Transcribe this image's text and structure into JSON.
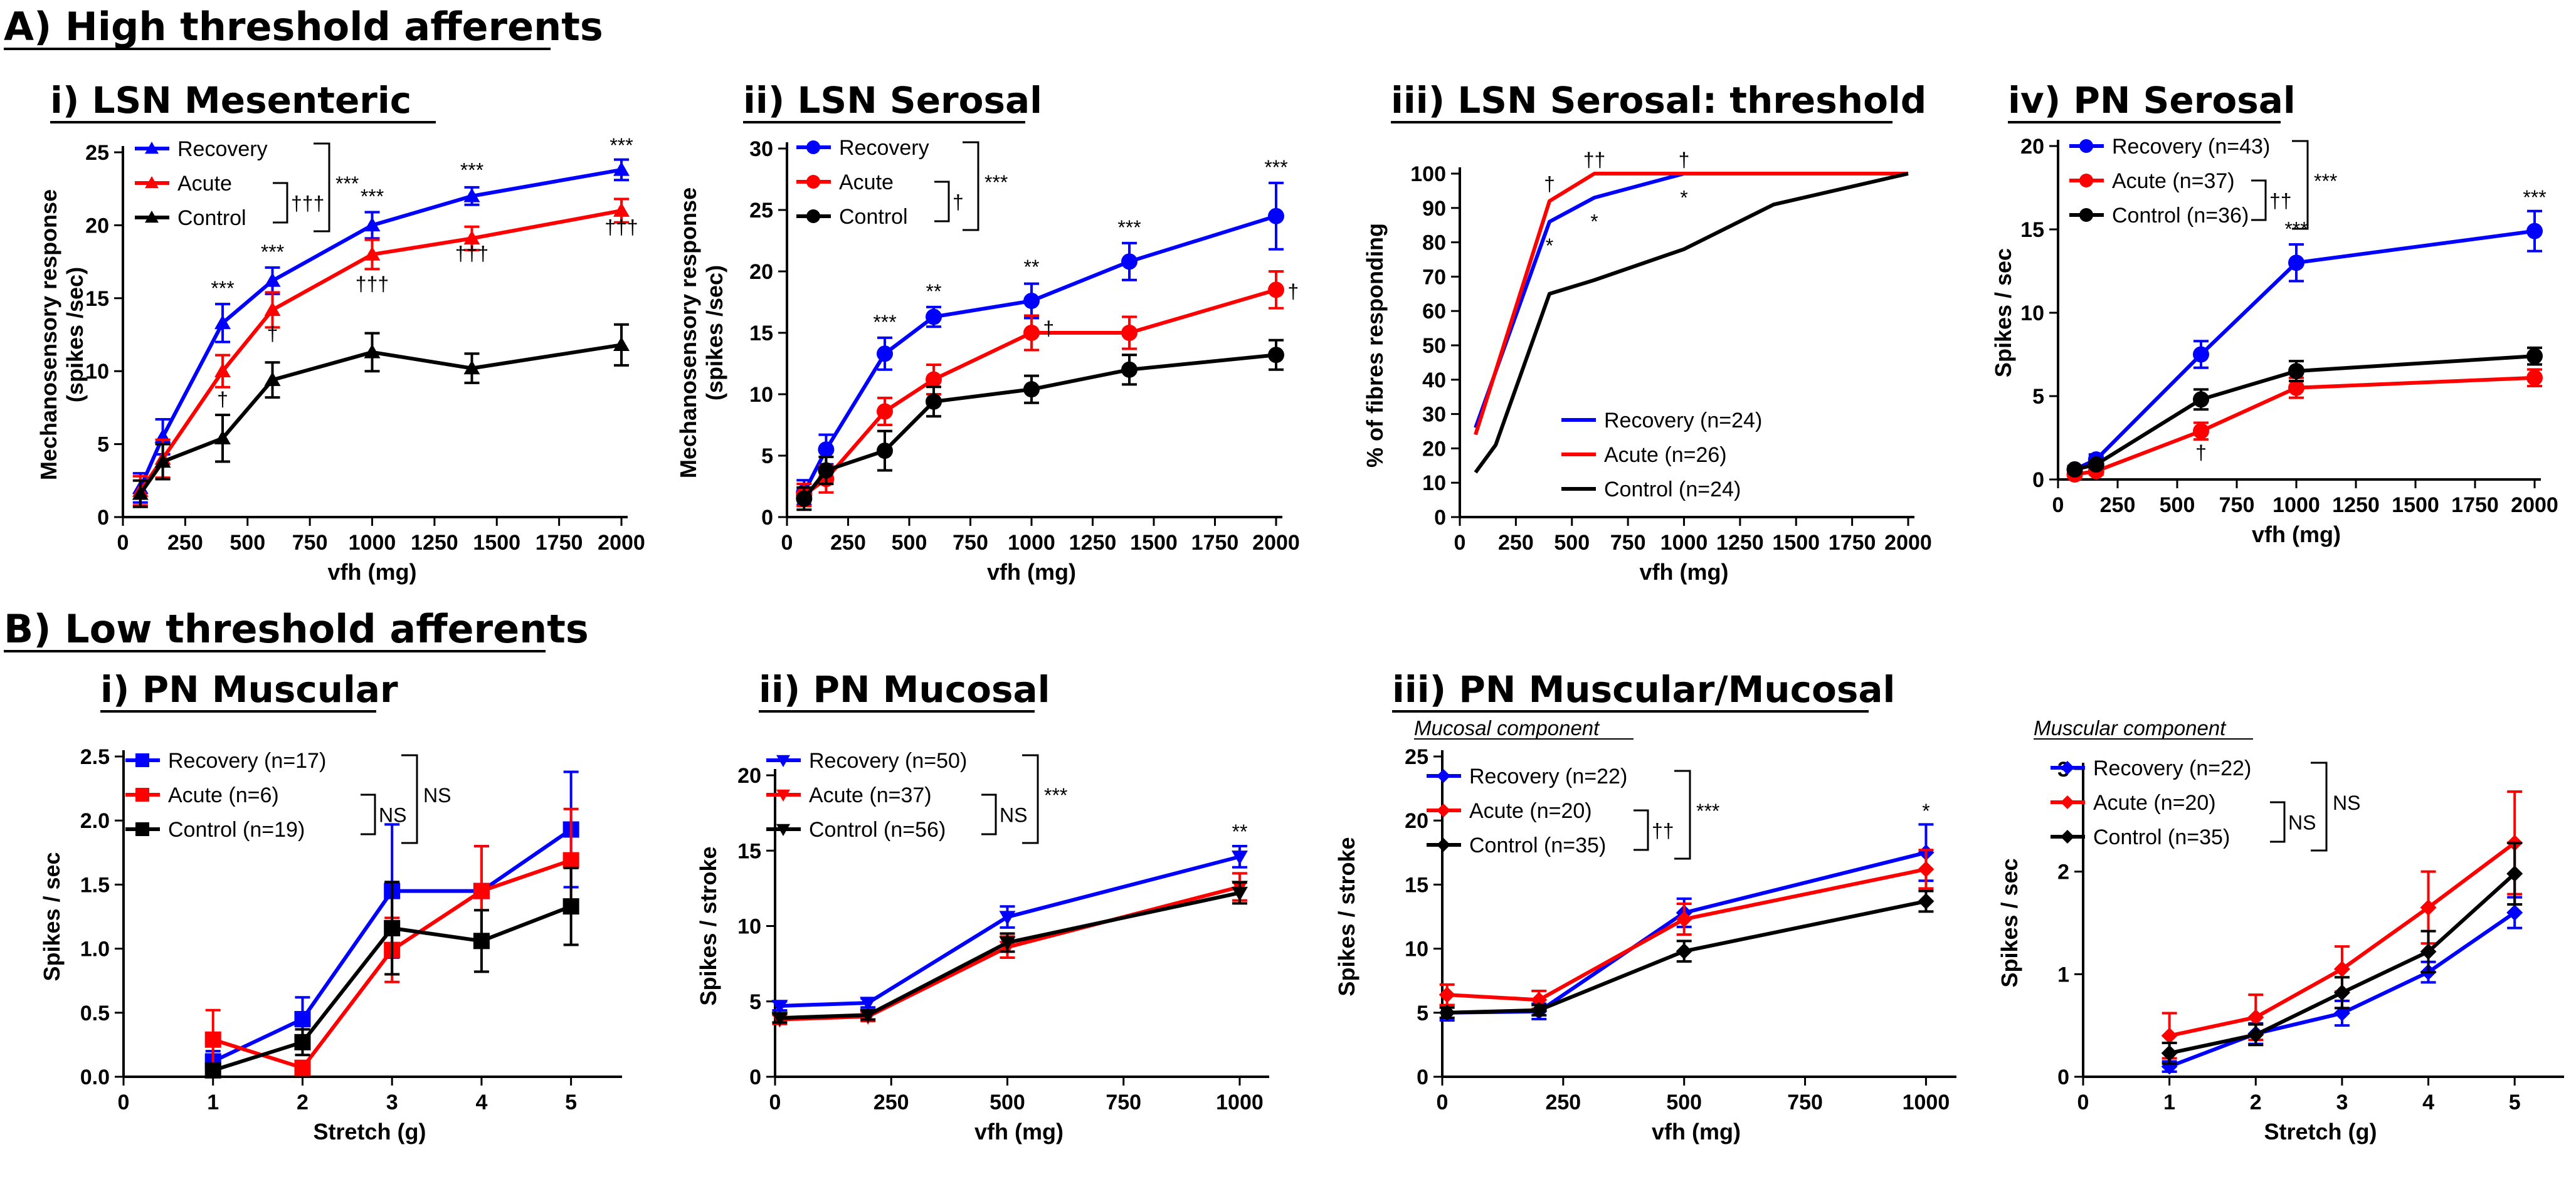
{
  "sections": [
    {
      "label": "A) High threshold afferents"
    },
    {
      "label": "B) Low threshold afferents"
    }
  ],
  "chart_data": [
    {
      "id": "a1",
      "type": "line",
      "title": "i) LSN Mesenteric",
      "xlabel": "vfh (mg)",
      "ylabel": "Mechanosensory response\n(spikes /sec)",
      "xlim": [
        0,
        2000
      ],
      "ylim": [
        0,
        25
      ],
      "xticks": [
        0,
        250,
        500,
        750,
        1000,
        1250,
        1500,
        1750,
        2000
      ],
      "yticks": [
        0,
        5,
        10,
        15,
        20,
        25
      ],
      "x": [
        70,
        160,
        400,
        600,
        1000,
        1400,
        2000
      ],
      "series": [
        {
          "name": "Recovery",
          "color": "#0000ff",
          "marker": "triangle",
          "values": [
            2,
            5.5,
            13.3,
            16.2,
            20,
            22,
            23.8
          ],
          "err": [
            1,
            1.2,
            1.3,
            0.9,
            0.9,
            0.6,
            0.7
          ]
        },
        {
          "name": "Acute",
          "color": "#ff0000",
          "marker": "triangle",
          "values": [
            1.8,
            4,
            10,
            14.2,
            18,
            19.1,
            21
          ],
          "err": [
            1,
            1.3,
            1.1,
            1.2,
            1,
            0.8,
            0.8
          ]
        },
        {
          "name": "Control",
          "color": "#000000",
          "marker": "triangle",
          "values": [
            1.6,
            3.8,
            5.4,
            9.4,
            11.3,
            10.2,
            11.8
          ],
          "err": [
            0.9,
            1.2,
            1.6,
            1.2,
            1.3,
            1,
            1.4
          ]
        }
      ],
      "legend": {
        "labels": [
          "Recovery",
          "Acute",
          "Control"
        ],
        "bracket_inner": "†††",
        "bracket_outer": "***"
      },
      "annotations": [
        {
          "text": "***",
          "x": 400,
          "y": 15.2
        },
        {
          "text": "†",
          "x": 400,
          "y": 7.6
        },
        {
          "text": "***",
          "x": 600,
          "y": 17.7
        },
        {
          "text": "†",
          "x": 600,
          "y": 12.1
        },
        {
          "text": "***",
          "x": 1000,
          "y": 21.5
        },
        {
          "text": "†††",
          "x": 1000,
          "y": 15.5
        },
        {
          "text": "***",
          "x": 1400,
          "y": 23.3
        },
        {
          "text": "†††",
          "x": 1400,
          "y": 17.6
        },
        {
          "text": "***",
          "x": 2000,
          "y": 25
        },
        {
          "text": "†††",
          "x": 2000,
          "y": 19.4
        }
      ]
    },
    {
      "id": "a2",
      "type": "line",
      "title": "ii) LSN Serosal",
      "xlabel": "vfh (mg)",
      "ylabel": "Mechanosensory response\n(spikes /sec)",
      "xlim": [
        0,
        2000
      ],
      "ylim": [
        0,
        30
      ],
      "xticks": [
        0,
        250,
        500,
        750,
        1000,
        1250,
        1500,
        1750,
        2000
      ],
      "yticks": [
        0,
        5,
        10,
        15,
        20,
        25,
        30
      ],
      "x": [
        70,
        160,
        400,
        600,
        1000,
        1400,
        2000
      ],
      "series": [
        {
          "name": "Recovery",
          "color": "#0000ff",
          "marker": "circle",
          "values": [
            2,
            5.5,
            13.3,
            16.3,
            17.6,
            20.8,
            24.5
          ],
          "err": [
            1,
            1.2,
            1.3,
            0.8,
            1.4,
            1.5,
            2.7
          ]
        },
        {
          "name": "Acute",
          "color": "#ff0000",
          "marker": "circle",
          "values": [
            1.8,
            3.1,
            8.6,
            11.2,
            15,
            15,
            18.5
          ],
          "err": [
            0.9,
            1.1,
            1.1,
            1.2,
            1.4,
            1.3,
            1.5
          ]
        },
        {
          "name": "Control",
          "color": "#000000",
          "marker": "circle",
          "values": [
            1.5,
            3.8,
            5.4,
            9.4,
            10.4,
            12,
            13.2
          ],
          "err": [
            0.9,
            1.1,
            1.6,
            1.2,
            1.1,
            1.2,
            1.2
          ]
        }
      ],
      "legend": {
        "labels": [
          "Recovery",
          "Acute",
          "Control"
        ],
        "bracket_inner": "†",
        "bracket_outer": "***"
      },
      "annotations": [
        {
          "text": "***",
          "x": 400,
          "y": 15.3
        },
        {
          "text": "**",
          "x": 600,
          "y": 17.8
        },
        {
          "text": "**",
          "x": 1000,
          "y": 19.8
        },
        {
          "text": "†",
          "x": 1070,
          "y": 14.8
        },
        {
          "text": "***",
          "x": 1400,
          "y": 23
        },
        {
          "text": "***",
          "x": 2000,
          "y": 27.9
        },
        {
          "text": "†",
          "x": 2070,
          "y": 17.8
        }
      ]
    },
    {
      "id": "a3",
      "type": "line",
      "title": "iii) LSN Serosal: threshold",
      "xlabel": "vfh (mg)",
      "ylabel": "% of fibres responding",
      "xlim": [
        0,
        2000
      ],
      "ylim": [
        0,
        100
      ],
      "xticks": [
        0,
        250,
        500,
        750,
        1000,
        1250,
        1500,
        1750,
        2000
      ],
      "yticks": [
        0,
        10,
        20,
        30,
        40,
        50,
        60,
        70,
        80,
        90,
        100
      ],
      "series": [
        {
          "name": "Recovery (n=24)",
          "color": "#0000ff",
          "x": [
            70,
            400,
            600,
            1000,
            1400,
            2000
          ],
          "values": [
            26,
            86,
            93,
            100,
            100,
            100
          ]
        },
        {
          "name": "Acute (n=26)",
          "color": "#ff0000",
          "x": [
            70,
            400,
            600,
            1000,
            1400,
            2000
          ],
          "values": [
            24,
            92,
            100,
            100,
            100,
            100
          ]
        },
        {
          "name": "Control (n=24)",
          "color": "#000000",
          "x": [
            70,
            160,
            400,
            600,
            1000,
            1400,
            2000
          ],
          "values": [
            13,
            21,
            65,
            69,
            78,
            91,
            100
          ]
        }
      ],
      "legend": {
        "labels": [
          "Recovery (n=24)",
          "Acute (n=26)",
          "Control (n=24)"
        ]
      },
      "annotations": [
        {
          "text": "†",
          "x": 400,
          "y": 95
        },
        {
          "text": "*",
          "x": 400,
          "y": 77
        },
        {
          "text": "††",
          "x": 600,
          "y": 102
        },
        {
          "text": "*",
          "x": 600,
          "y": 84
        },
        {
          "text": "†",
          "x": 1000,
          "y": 102
        },
        {
          "text": "*",
          "x": 1000,
          "y": 91
        }
      ]
    },
    {
      "id": "a4",
      "type": "line",
      "title": "iv) PN Serosal",
      "xlabel": "vfh (mg)",
      "ylabel": "Spikes / sec",
      "xlim": [
        0,
        2000
      ],
      "ylim": [
        0,
        20
      ],
      "xticks": [
        0,
        250,
        500,
        750,
        1000,
        1250,
        1500,
        1750,
        2000
      ],
      "yticks": [
        0,
        5,
        10,
        15,
        20
      ],
      "x": [
        70,
        160,
        600,
        1000,
        2000
      ],
      "series": [
        {
          "name": "Recovery (n=43)",
          "color": "#0000ff",
          "marker": "circle",
          "values": [
            0.6,
            1.2,
            7.5,
            13,
            14.9
          ],
          "err": [
            0.2,
            0.3,
            0.8,
            1.1,
            1.2
          ]
        },
        {
          "name": "Acute (n=37)",
          "color": "#ff0000",
          "marker": "circle",
          "values": [
            0.3,
            0.5,
            2.9,
            5.5,
            6.1
          ],
          "err": [
            0.2,
            0.2,
            0.5,
            0.6,
            0.5
          ]
        },
        {
          "name": "Control (n=36)",
          "color": "#000000",
          "marker": "circle",
          "values": [
            0.6,
            0.9,
            4.8,
            6.5,
            7.4
          ],
          "err": [
            0.2,
            0.2,
            0.6,
            0.6,
            0.5
          ]
        }
      ],
      "legend": {
        "labels": [
          "Recovery (n=43)",
          "Acute (n=37)",
          "Control (n=36)"
        ],
        "bracket_inner": "††",
        "bracket_outer": "***"
      },
      "annotations": [
        {
          "text": "†",
          "x": 600,
          "y": 1.2
        },
        {
          "text": "***",
          "x": 1000,
          "y": 14.6
        },
        {
          "text": "***",
          "x": 2000,
          "y": 16.5
        }
      ]
    },
    {
      "id": "b1",
      "type": "line",
      "title": "i) PN Muscular",
      "xlabel": "Stretch (g)",
      "ylabel": "Spikes / sec",
      "xlim": [
        0,
        5.5
      ],
      "ylim": [
        0,
        2.5
      ],
      "xticks": [
        0,
        1,
        2,
        3,
        4,
        5
      ],
      "yticks": [
        0.0,
        0.5,
        1.0,
        1.5,
        2.0,
        2.5
      ],
      "x": [
        1,
        2,
        3,
        4,
        5
      ],
      "series": [
        {
          "name": "Recovery (n=17)",
          "color": "#0000ff",
          "marker": "square",
          "values": [
            0.12,
            0.45,
            1.45,
            1.45,
            1.93
          ],
          "err": [
            0.08,
            0.17,
            0.52,
            0.35,
            0.45
          ]
        },
        {
          "name": "Acute (n=6)",
          "color": "#ff0000",
          "marker": "square",
          "values": [
            0.29,
            0.07,
            0.99,
            1.45,
            1.69
          ],
          "err": [
            0.23,
            0.05,
            0.25,
            0.35,
            0.4
          ]
        },
        {
          "name": "Control (n=19)",
          "color": "#000000",
          "marker": "square",
          "values": [
            0.05,
            0.27,
            1.16,
            1.06,
            1.33
          ],
          "err": [
            0.05,
            0.1,
            0.36,
            0.24,
            0.3
          ]
        }
      ],
      "legend": {
        "labels": [
          "Recovery (n=17)",
          "Acute (n=6)",
          "Control (n=19)"
        ],
        "bracket_inner": "NS",
        "bracket_outer": "NS"
      },
      "annotations": []
    },
    {
      "id": "b2",
      "type": "line",
      "title": "ii) PN Mucosal",
      "xlabel": "vfh (mg)",
      "ylabel": "Spikes / stroke",
      "xlim": [
        0,
        1050
      ],
      "ylim": [
        0,
        20
      ],
      "xticks": [
        0,
        250,
        500,
        750,
        1000
      ],
      "yticks": [
        0,
        5,
        10,
        15,
        20
      ],
      "x": [
        10,
        200,
        500,
        1000
      ],
      "series": [
        {
          "name": "Recovery (n=50)",
          "color": "#0000ff",
          "marker": "triangle-down",
          "values": [
            4.7,
            4.9,
            10.6,
            14.6
          ],
          "err": [
            0.3,
            0.3,
            0.7,
            0.7
          ]
        },
        {
          "name": "Acute (n=37)",
          "color": "#ff0000",
          "marker": "triangle-down",
          "values": [
            3.8,
            4,
            8.6,
            12.6
          ],
          "err": [
            0.3,
            0.3,
            0.7,
            0.9
          ]
        },
        {
          "name": "Control (n=56)",
          "color": "#000000",
          "marker": "triangle-down",
          "values": [
            3.9,
            4.1,
            8.9,
            12.2
          ],
          "err": [
            0.3,
            0.3,
            0.6,
            0.7
          ]
        }
      ],
      "legend": {
        "labels": [
          "Recovery (n=50)",
          "Acute (n=37)",
          "Control (n=56)"
        ],
        "bracket_inner": "NS",
        "bracket_outer": "***"
      },
      "annotations": [
        {
          "text": "**",
          "x": 1000,
          "y": 15.8
        }
      ]
    },
    {
      "id": "b3",
      "type": "line",
      "title": "iii) PN Muscular/Mucosal",
      "subtitle": "Mucosal component",
      "xlabel": "vfh (mg)",
      "ylabel": "Spikes / stroke",
      "xlim": [
        0,
        1050
      ],
      "ylim": [
        0,
        25
      ],
      "xticks": [
        0,
        250,
        500,
        750,
        1000
      ],
      "yticks": [
        0,
        5,
        10,
        15,
        20,
        25
      ],
      "x": [
        10,
        200,
        500,
        1000
      ],
      "series": [
        {
          "name": "Recovery (n=22)",
          "color": "#0000ff",
          "marker": "diamond",
          "values": [
            5,
            5.1,
            12.8,
            17.5
          ],
          "err": [
            0.6,
            0.6,
            1.1,
            2.2
          ]
        },
        {
          "name": "Acute (n=20)",
          "color": "#ff0000",
          "marker": "diamond",
          "values": [
            6.4,
            6,
            12.3,
            16.2
          ],
          "err": [
            0.8,
            0.7,
            1.2,
            1.5
          ]
        },
        {
          "name": "Control (n=35)",
          "color": "#000000",
          "marker": "diamond",
          "values": [
            5,
            5.2,
            9.8,
            13.7
          ],
          "err": [
            0.4,
            0.4,
            0.8,
            0.8
          ]
        }
      ],
      "legend": {
        "labels": [
          "Recovery (n=22)",
          "Acute (n=20)",
          "Control (n=35)"
        ],
        "bracket_inner": "††",
        "bracket_outer": "***"
      },
      "annotations": [
        {
          "text": "*",
          "x": 1000,
          "y": 20.2
        }
      ]
    },
    {
      "id": "b4",
      "type": "line",
      "title": "",
      "subtitle": "Muscular component",
      "xlabel": "Stretch (g)",
      "ylabel": "Spikes / sec",
      "xlim": [
        0,
        5.5
      ],
      "ylim": [
        0,
        3
      ],
      "xticks": [
        0,
        1,
        2,
        3,
        4,
        5
      ],
      "yticks": [
        0,
        1,
        2,
        3
      ],
      "x": [
        1,
        2,
        3,
        4,
        5
      ],
      "series": [
        {
          "name": "Recovery (n=22)",
          "color": "#0000ff",
          "marker": "diamond",
          "values": [
            0.1,
            0.42,
            0.62,
            1.02,
            1.6
          ],
          "err": [
            0.05,
            0.1,
            0.12,
            0.1,
            0.15
          ]
        },
        {
          "name": "Acute (n=20)",
          "color": "#ff0000",
          "marker": "diamond",
          "values": [
            0.4,
            0.58,
            1.05,
            1.65,
            2.28
          ],
          "err": [
            0.22,
            0.22,
            0.22,
            0.35,
            0.5
          ]
        },
        {
          "name": "Control (n=35)",
          "color": "#000000",
          "marker": "diamond",
          "values": [
            0.23,
            0.41,
            0.82,
            1.22,
            1.98
          ],
          "err": [
            0.1,
            0.1,
            0.15,
            0.2,
            0.3
          ]
        }
      ],
      "legend": {
        "labels": [
          "Recovery (n=22)",
          "Acute (n=20)",
          "Control (n=35)"
        ],
        "bracket_inner": "NS",
        "bracket_outer": "NS"
      },
      "annotations": []
    }
  ]
}
